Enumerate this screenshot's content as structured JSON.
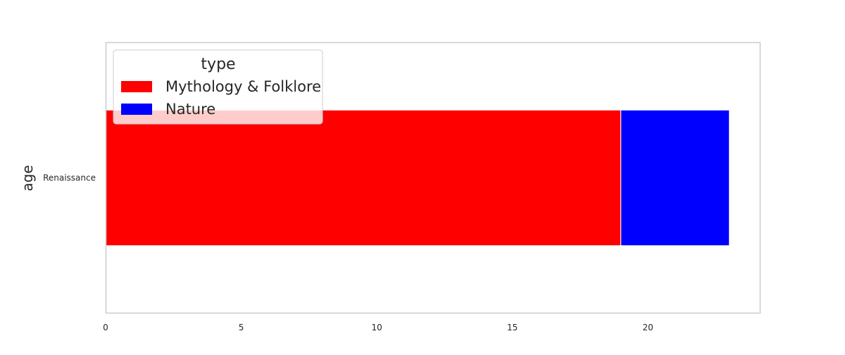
{
  "chart_data": {
    "type": "bar",
    "orientation": "horizontal",
    "stacked": true,
    "categories": [
      "Renaissance"
    ],
    "series": [
      {
        "name": "Mythology & Folklore",
        "values": [
          19
        ],
        "color": "#ff0000"
      },
      {
        "name": "Nature",
        "values": [
          4
        ],
        "color": "#0000ff"
      }
    ],
    "xlabel": "",
    "ylabel": "age",
    "xlim": [
      0,
      24.15
    ],
    "xticks": [
      0,
      5,
      10,
      15,
      20
    ],
    "grid": false,
    "legend": {
      "title": "type",
      "placement": "top-left"
    }
  }
}
